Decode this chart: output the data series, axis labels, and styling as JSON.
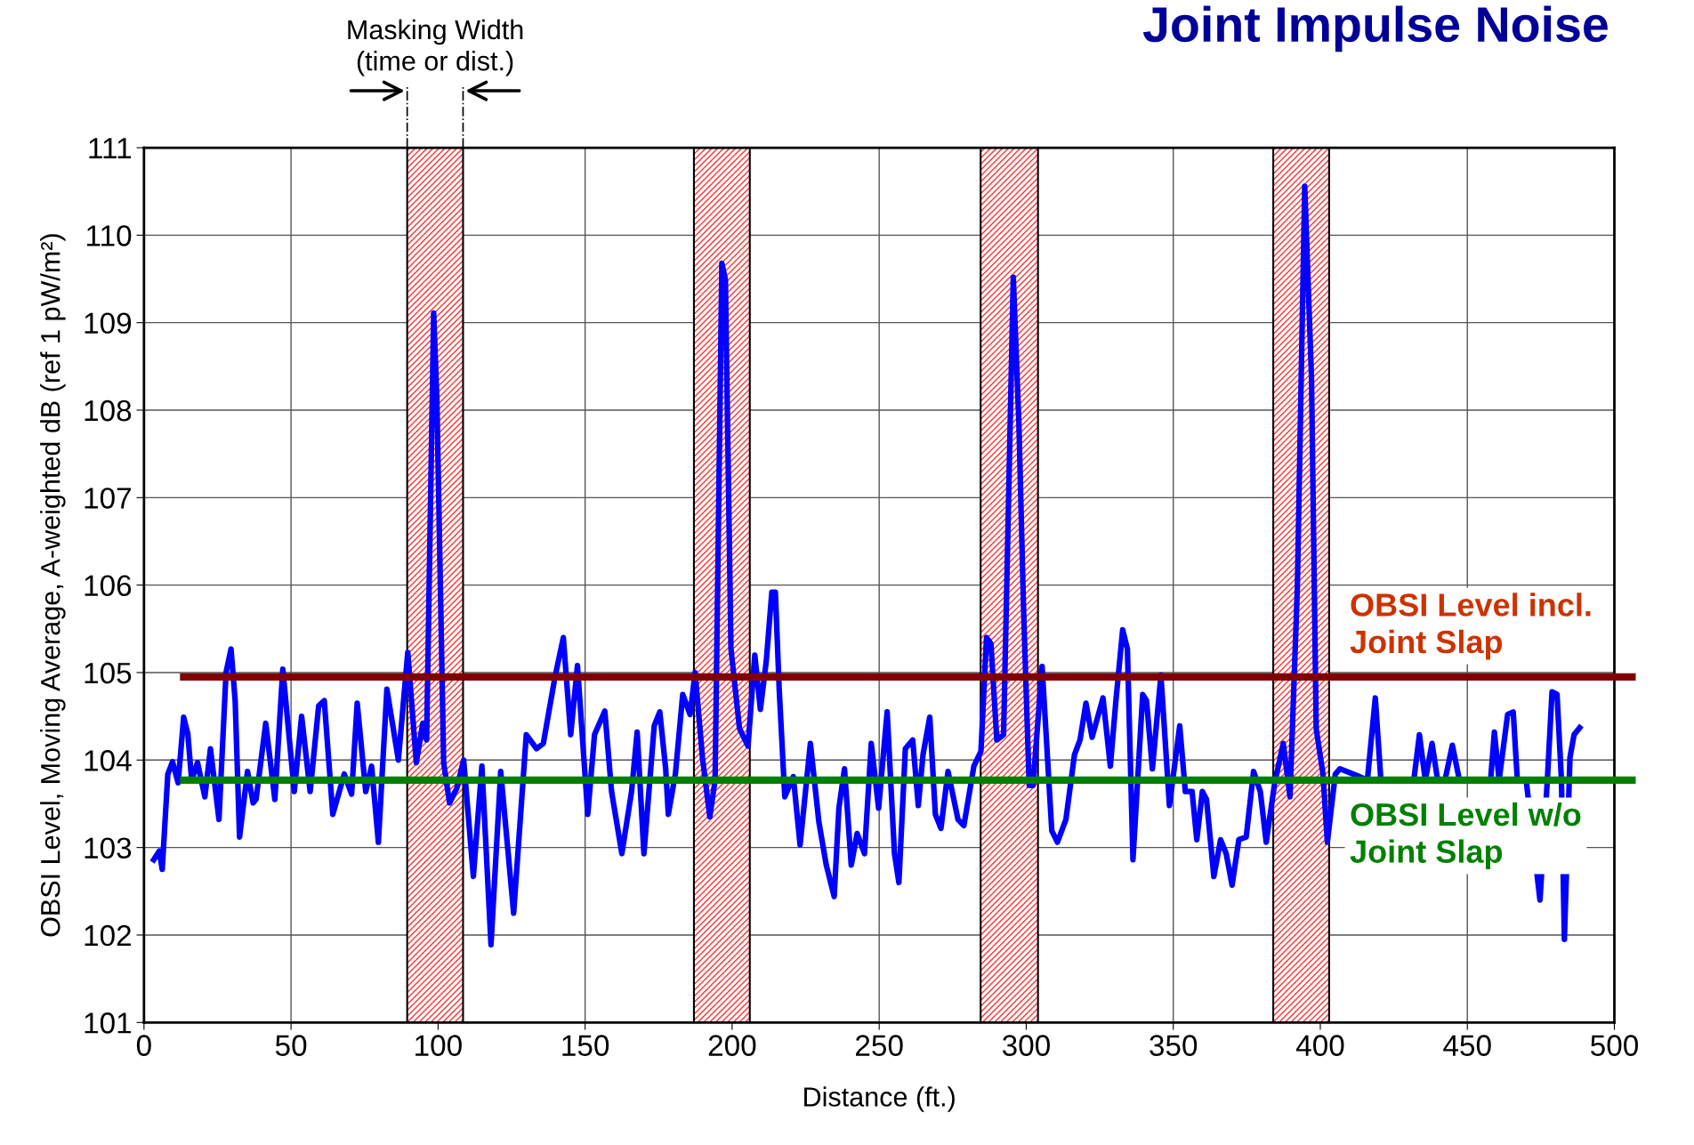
{
  "chart_data": {
    "type": "line",
    "title": "Joint Impulse Noise",
    "xlabel": "Distance (ft.)",
    "ylabel": "OBSI Level, Moving Average, A-weighted dB (ref 1 pW/m²)",
    "xlim": [
      0,
      500
    ],
    "xticks": [
      0,
      50,
      100,
      150,
      200,
      250,
      300,
      350,
      400,
      450,
      500
    ],
    "ylim": [
      101,
      111
    ],
    "yticks": [
      101,
      102,
      103,
      104,
      105,
      106,
      107,
      108,
      109,
      110,
      111
    ],
    "grid": true,
    "marker": "none",
    "line_style": "solid",
    "annotations": [
      "Masking Width\n(time or dist.)"
    ],
    "series": [
      {
        "color": "#0000ff",
        "x": [
          3.3,
          5.2,
          6.2,
          8.1,
          9.7,
          11.6,
          13.5,
          14.9,
          16.2,
          18.2,
          20.7,
          22.6,
          25.5,
          27.9,
          29.6,
          31,
          32.5,
          35.2,
          37.1,
          38.1,
          41.4,
          44.5,
          47.2,
          51.1,
          53.6,
          56.5,
          59.4,
          61.3,
          64.2,
          68.1,
          70.6,
          72.5,
          75.4,
          77.4,
          79.7,
          82.6,
          86.5,
          89.7,
          92.6,
          94.8,
          96.1,
          98.5,
          99.6,
          101.9,
          103.9,
          106.4,
          108.7,
          112,
          114.9,
          118,
          121.3,
          125.7,
          130,
          133.5,
          135.8,
          139.7,
          142.6,
          145.1,
          147.4,
          150.9,
          153.2,
          156.7,
          159,
          162.5,
          165.8,
          167.7,
          170,
          173.5,
          175.4,
          177.4,
          178.3,
          180.7,
          183.2,
          185.7,
          187.4,
          189.9,
          192.4,
          194.2,
          196.5,
          197.7,
          199.6,
          202.5,
          205.4,
          207.7,
          209.6,
          211.6,
          213.5,
          214.7,
          216,
          217.9,
          220.8,
          223.1,
          226.6,
          229.5,
          232,
          234.7,
          236.3,
          238.2,
          240.5,
          242.5,
          245,
          247.3,
          249.8,
          252.7,
          255.2,
          256.7,
          258.9,
          261.4,
          263.3,
          264.9,
          267.2,
          269.1,
          271,
          273.4,
          276.8,
          278.8,
          282.2,
          284.6,
          286.5,
          288,
          290,
          292.3,
          295.6,
          297.5,
          299.1,
          301,
          302.3,
          305.4,
          308.7,
          310.6,
          313.5,
          316.4,
          318.3,
          320.3,
          322.4,
          326.1,
          328.6,
          330.5,
          332.8,
          334.4,
          336.3,
          339.6,
          340.9,
          342.9,
          345.8,
          348.7,
          352.2,
          354.1,
          356.4,
          358,
          359.9,
          361.3,
          363.8,
          366.1,
          368,
          370,
          372.3,
          374.8,
          377.3,
          379.6,
          381.6,
          384.5,
          387.4,
          389.7,
          392.2,
          394.7,
          397,
          398.6,
          400.9,
          402.4,
          405.1,
          406.7,
          413.4,
          416,
          418.7,
          420.6,
          431.8,
          433.7,
          435.7,
          438,
          439.9,
          442.4,
          444.9,
          447.3,
          457.9,
          459.2,
          460.8,
          463.7,
          465.6,
          467,
          470,
          474.7,
          477.2,
          478.8,
          480.5,
          482,
          483,
          484.9,
          486.3,
          488.2
        ],
        "values": [
          102.86,
          102.96,
          102.75,
          103.84,
          103.98,
          103.74,
          104.49,
          104.3,
          103.77,
          103.97,
          103.58,
          104.13,
          103.32,
          105.0,
          105.27,
          104.68,
          103.12,
          103.87,
          103.51,
          103.55,
          104.42,
          103.55,
          105.04,
          103.64,
          104.5,
          103.64,
          104.62,
          104.68,
          103.38,
          103.84,
          103.61,
          104.65,
          103.64,
          103.93,
          103.06,
          104.81,
          104.0,
          105.23,
          103.97,
          104.42,
          104.23,
          109.11,
          108.12,
          103.97,
          103.51,
          103.68,
          104.0,
          102.67,
          103.93,
          101.89,
          103.87,
          102.25,
          104.29,
          104.13,
          104.19,
          104.94,
          105.4,
          104.29,
          105.08,
          103.38,
          104.29,
          104.56,
          103.64,
          102.93,
          103.64,
          104.32,
          102.93,
          104.39,
          104.55,
          103.9,
          103.38,
          103.84,
          104.75,
          104.52,
          105.0,
          104.03,
          103.35,
          103.77,
          109.68,
          109.49,
          105.27,
          104.36,
          104.16,
          105.2,
          104.58,
          105.13,
          105.92,
          105.92,
          104.81,
          103.58,
          103.81,
          103.03,
          104.19,
          103.29,
          102.8,
          102.44,
          103.45,
          103.9,
          102.8,
          103.16,
          102.93,
          104.19,
          103.45,
          104.55,
          102.93,
          102.6,
          104.13,
          104.23,
          103.48,
          104.06,
          104.49,
          103.38,
          103.22,
          103.87,
          103.32,
          103.25,
          103.93,
          104.1,
          105.4,
          105.33,
          104.23,
          104.29,
          109.52,
          107.86,
          105.72,
          103.71,
          103.71,
          105.07,
          103.19,
          103.06,
          103.32,
          104.06,
          104.23,
          104.65,
          104.26,
          104.71,
          103.93,
          104.68,
          105.49,
          105.27,
          102.86,
          104.75,
          104.68,
          103.9,
          104.97,
          103.48,
          104.39,
          103.64,
          103.64,
          103.09,
          103.64,
          103.55,
          102.67,
          103.09,
          102.93,
          102.57,
          103.09,
          103.12,
          103.87,
          103.64,
          103.06,
          103.74,
          104.19,
          103.58,
          105.98,
          110.56,
          108.38,
          104.36,
          103.84,
          103.06,
          103.84,
          103.9,
          103.81,
          103.77,
          104.71,
          103.77,
          103.77,
          104.29,
          103.77,
          104.19,
          103.77,
          103.77,
          104.17,
          103.77,
          103.77,
          104.32,
          103.77,
          104.52,
          104.55,
          103.77,
          103.77,
          102.4,
          103.77,
          104.78,
          104.75,
          103.77,
          101.95,
          104.03,
          104.29,
          104.37
        ]
      }
    ],
    "ref_lines": [
      {
        "axis": "y",
        "value": 104.95,
        "label": "OBSI Level incl.\nJoint Slap",
        "color": "#800000",
        "line_style": "solid"
      },
      {
        "axis": "y",
        "value": 103.77,
        "label": "OBSI Level w/o\nJoint Slap",
        "color": "#008000",
        "line_style": "solid"
      }
    ],
    "bands": [
      {
        "axis": "x",
        "from": 89.5,
        "to": 108.5,
        "color": "#ff3333"
      },
      {
        "axis": "x",
        "from": 187,
        "to": 206,
        "color": "#ff3333"
      },
      {
        "axis": "x",
        "from": 284.5,
        "to": 304,
        "color": "#ff3333"
      },
      {
        "axis": "x",
        "from": 384,
        "to": 403,
        "color": "#ff3333"
      }
    ]
  }
}
